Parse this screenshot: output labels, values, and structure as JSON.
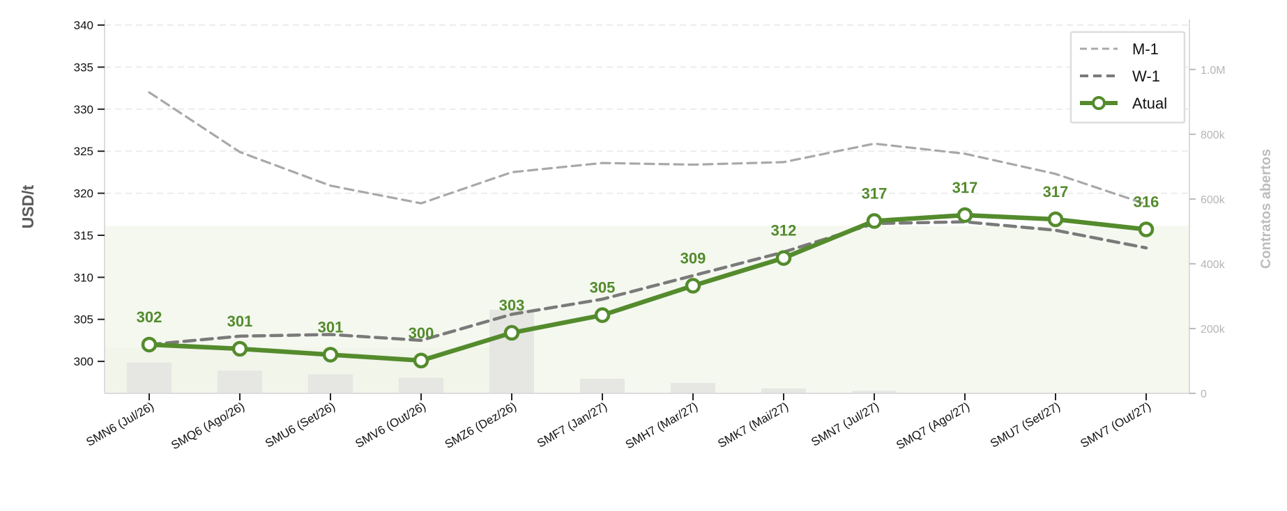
{
  "chart_data": {
    "type": "line",
    "categories": [
      "SMN6 (Jul/26)",
      "SMQ6 (Ago/26)",
      "SMU6 (Set/26)",
      "SMV6 (Out/26)",
      "SMZ6 (Dez/26)",
      "SMF7 (Jan/27)",
      "SMH7 (Mar/27)",
      "SMK7 (Mai/27)",
      "SMN7 (Jul/27)",
      "SMQ7 (Ago/27)",
      "SMU7 (Set/27)",
      "SMV7 (Out/27)"
    ],
    "series": [
      {
        "name": "M-1",
        "values": [
          332.0,
          324.9,
          320.9,
          318.8,
          322.5,
          323.6,
          323.4,
          323.7,
          325.9,
          324.7,
          322.3,
          318.7
        ],
        "color": "#a8a8a8",
        "dash": "dashed"
      },
      {
        "name": "W-1",
        "values": [
          302.0,
          303.0,
          303.2,
          302.5,
          305.6,
          307.4,
          310.2,
          313.0,
          316.4,
          316.6,
          315.6,
          313.5
        ],
        "color": "#7a7a7a",
        "dash": "dashed"
      },
      {
        "name": "Atual",
        "values": [
          302.0,
          301.5,
          300.8,
          300.1,
          303.4,
          305.5,
          309.0,
          312.3,
          316.7,
          317.4,
          316.9,
          315.7
        ],
        "color": "#548b2d",
        "dash": "solid",
        "markers": true
      }
    ],
    "data_labels": [
      "302",
      "301",
      "301",
      "300",
      "303",
      "305",
      "309",
      "312",
      "317",
      "317",
      "317",
      "316"
    ],
    "open_interest": {
      "name": "Contratos abertos",
      "values": [
        95000,
        70000,
        58000,
        48000,
        258000,
        45000,
        32000,
        15000,
        8000,
        0,
        0,
        0
      ],
      "color": "#e6e6e2"
    },
    "open_interest_area": {
      "value": 517000,
      "color": "#f4f8ef"
    },
    "ylabel": "USD/t",
    "ylabel_right": "Contratos abertos",
    "ylim": [
      296.2,
      340.5
    ],
    "yticks": [
      300,
      305,
      310,
      315,
      320,
      325,
      330,
      335,
      340
    ],
    "yticks_right": [
      0,
      200000,
      400000,
      600000,
      800000,
      1000000
    ],
    "yticks_right_labels": [
      "0",
      "200k",
      "400k",
      "600k",
      "800k",
      "1.0M"
    ],
    "ylim_right": [
      0,
      1150000
    ],
    "grid": "horizontal dashed",
    "legend": {
      "placement": "top-right",
      "entries": [
        "M-1",
        "W-1",
        "Atual"
      ]
    }
  }
}
